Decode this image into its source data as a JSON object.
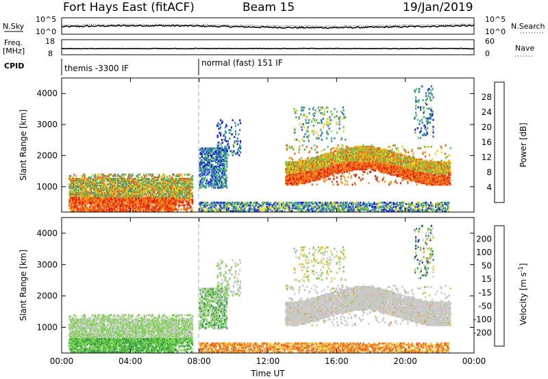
{
  "header": {
    "title": "Fort Hays East (fitACF)",
    "beam": "Beam 15",
    "date": "19/Jan/2019"
  },
  "status_panels": {
    "nsky_label": "N.Sky",
    "nsearch_label": "N.Search",
    "nsky_ticks": [
      "10^5",
      "10^0"
    ],
    "nsearch_ticks": [
      "10^5",
      "10^0"
    ],
    "freq_label_1": "Freq.",
    "freq_label_2": "[MHz]",
    "freq_ticks": [
      "18",
      "8"
    ],
    "nave_label": "Nave",
    "nave_ticks": [
      "60",
      "0"
    ],
    "cpid_label": "CPID",
    "cpid_segments": [
      {
        "label": "themis -3300 IF",
        "start_hour": 0
      },
      {
        "label": "normal (fast) 151 IF",
        "start_hour": 8
      }
    ]
  },
  "chart_data": [
    {
      "type": "heatmap",
      "name": "power",
      "xlabel": "",
      "ylabel": "Slant Range [km]",
      "xlim": [
        0,
        24
      ],
      "ylim": [
        180,
        4500
      ],
      "y_ticks": [
        1000,
        2000,
        3000,
        4000
      ],
      "colorbar_label": "Power [dB]",
      "colorbar_ticks": [
        4,
        8,
        12,
        16,
        20,
        24,
        28
      ],
      "colorbar_range": [
        0,
        32
      ],
      "colors": [
        "#1a1ae6",
        "#2b6fd1",
        "#3d9d7c",
        "#57c25a",
        "#e0d21a",
        "#f29a1a",
        "#f05a14",
        "#e81a0f"
      ]
    },
    {
      "type": "heatmap",
      "name": "velocity",
      "xlabel": "Time UT",
      "ylabel": "Slant Range [km]",
      "xlim": [
        0,
        24
      ],
      "ylim": [
        180,
        4500
      ],
      "x_ticks": [
        "00:00",
        "04:00",
        "08:00",
        "12:00",
        "16:00",
        "20:00",
        "00:00"
      ],
      "y_ticks": [
        1000,
        2000,
        3000,
        4000
      ],
      "colorbar_label": "Velocity [m s^-1]",
      "colorbar_ticks": [
        200,
        100,
        50,
        15,
        -15,
        -50,
        -100,
        -200
      ],
      "colors": [
        "#2233cc",
        "#2a8a6a",
        "#3aa04a",
        "#7ad44a",
        "#c8c8c8",
        "#f0c030",
        "#f09020",
        "#f05a14",
        "#e81a0f"
      ]
    }
  ]
}
